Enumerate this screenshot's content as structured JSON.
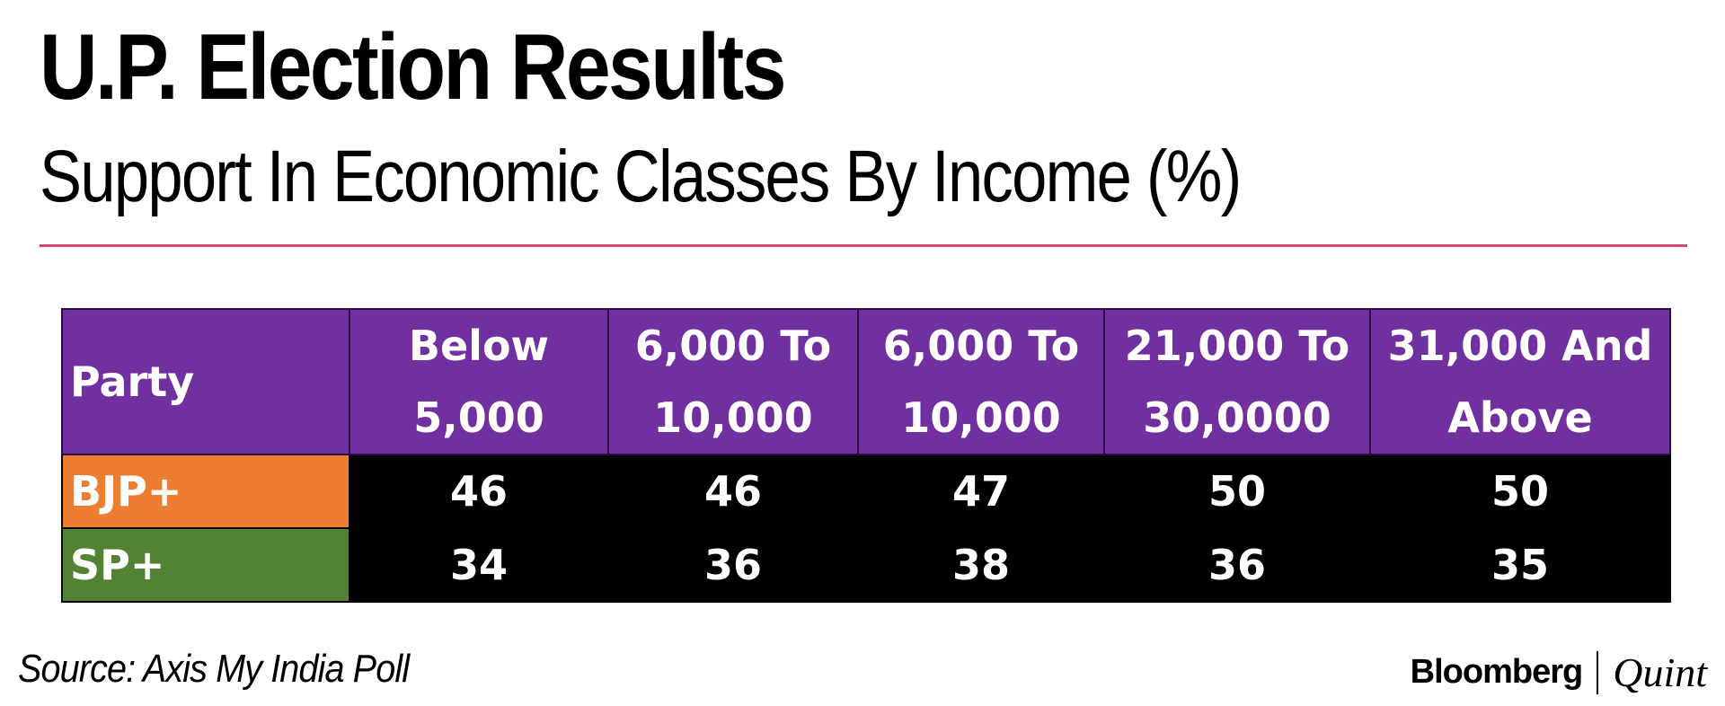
{
  "title": "U.P. Election Results",
  "subtitle": "Support In Economic Classes By Income (%)",
  "colors": {
    "rule": "#d6496f",
    "header_bg": "#7030a0",
    "bjp": "#ed7d31",
    "sp": "#548235",
    "body_bg": "#000000"
  },
  "table": {
    "party_header": "Party",
    "columns": [
      {
        "line1": "Below",
        "line2": "5,000"
      },
      {
        "line1": "6,000 To",
        "line2": "10,000"
      },
      {
        "line1": "6,000 To",
        "line2": "10,000"
      },
      {
        "line1": "21,000 To",
        "line2": "30,0000"
      },
      {
        "line1": "31,000 And",
        "line2": "Above"
      }
    ],
    "rows": [
      {
        "party": "BJP+",
        "values": [
          "46",
          "46",
          "47",
          "50",
          "50"
        ]
      },
      {
        "party": "SP+",
        "values": [
          "34",
          "36",
          "38",
          "36",
          "35"
        ]
      }
    ]
  },
  "chart_data": {
    "type": "table",
    "title": "U.P. Election Results",
    "subtitle": "Support In Economic Classes By Income (%)",
    "categories": [
      "Below 5,000",
      "6,000 To 10,000",
      "6,000 To 10,000",
      "21,000 To 30,0000",
      "31,000 And Above"
    ],
    "series": [
      {
        "name": "BJP+",
        "values": [
          46,
          46,
          47,
          50,
          50
        ]
      },
      {
        "name": "SP+",
        "values": [
          34,
          36,
          38,
          36,
          35
        ]
      }
    ]
  },
  "footer": {
    "source": "Source: Axis My India Poll",
    "brand_left": "Bloomberg",
    "brand_right": "Quint"
  }
}
